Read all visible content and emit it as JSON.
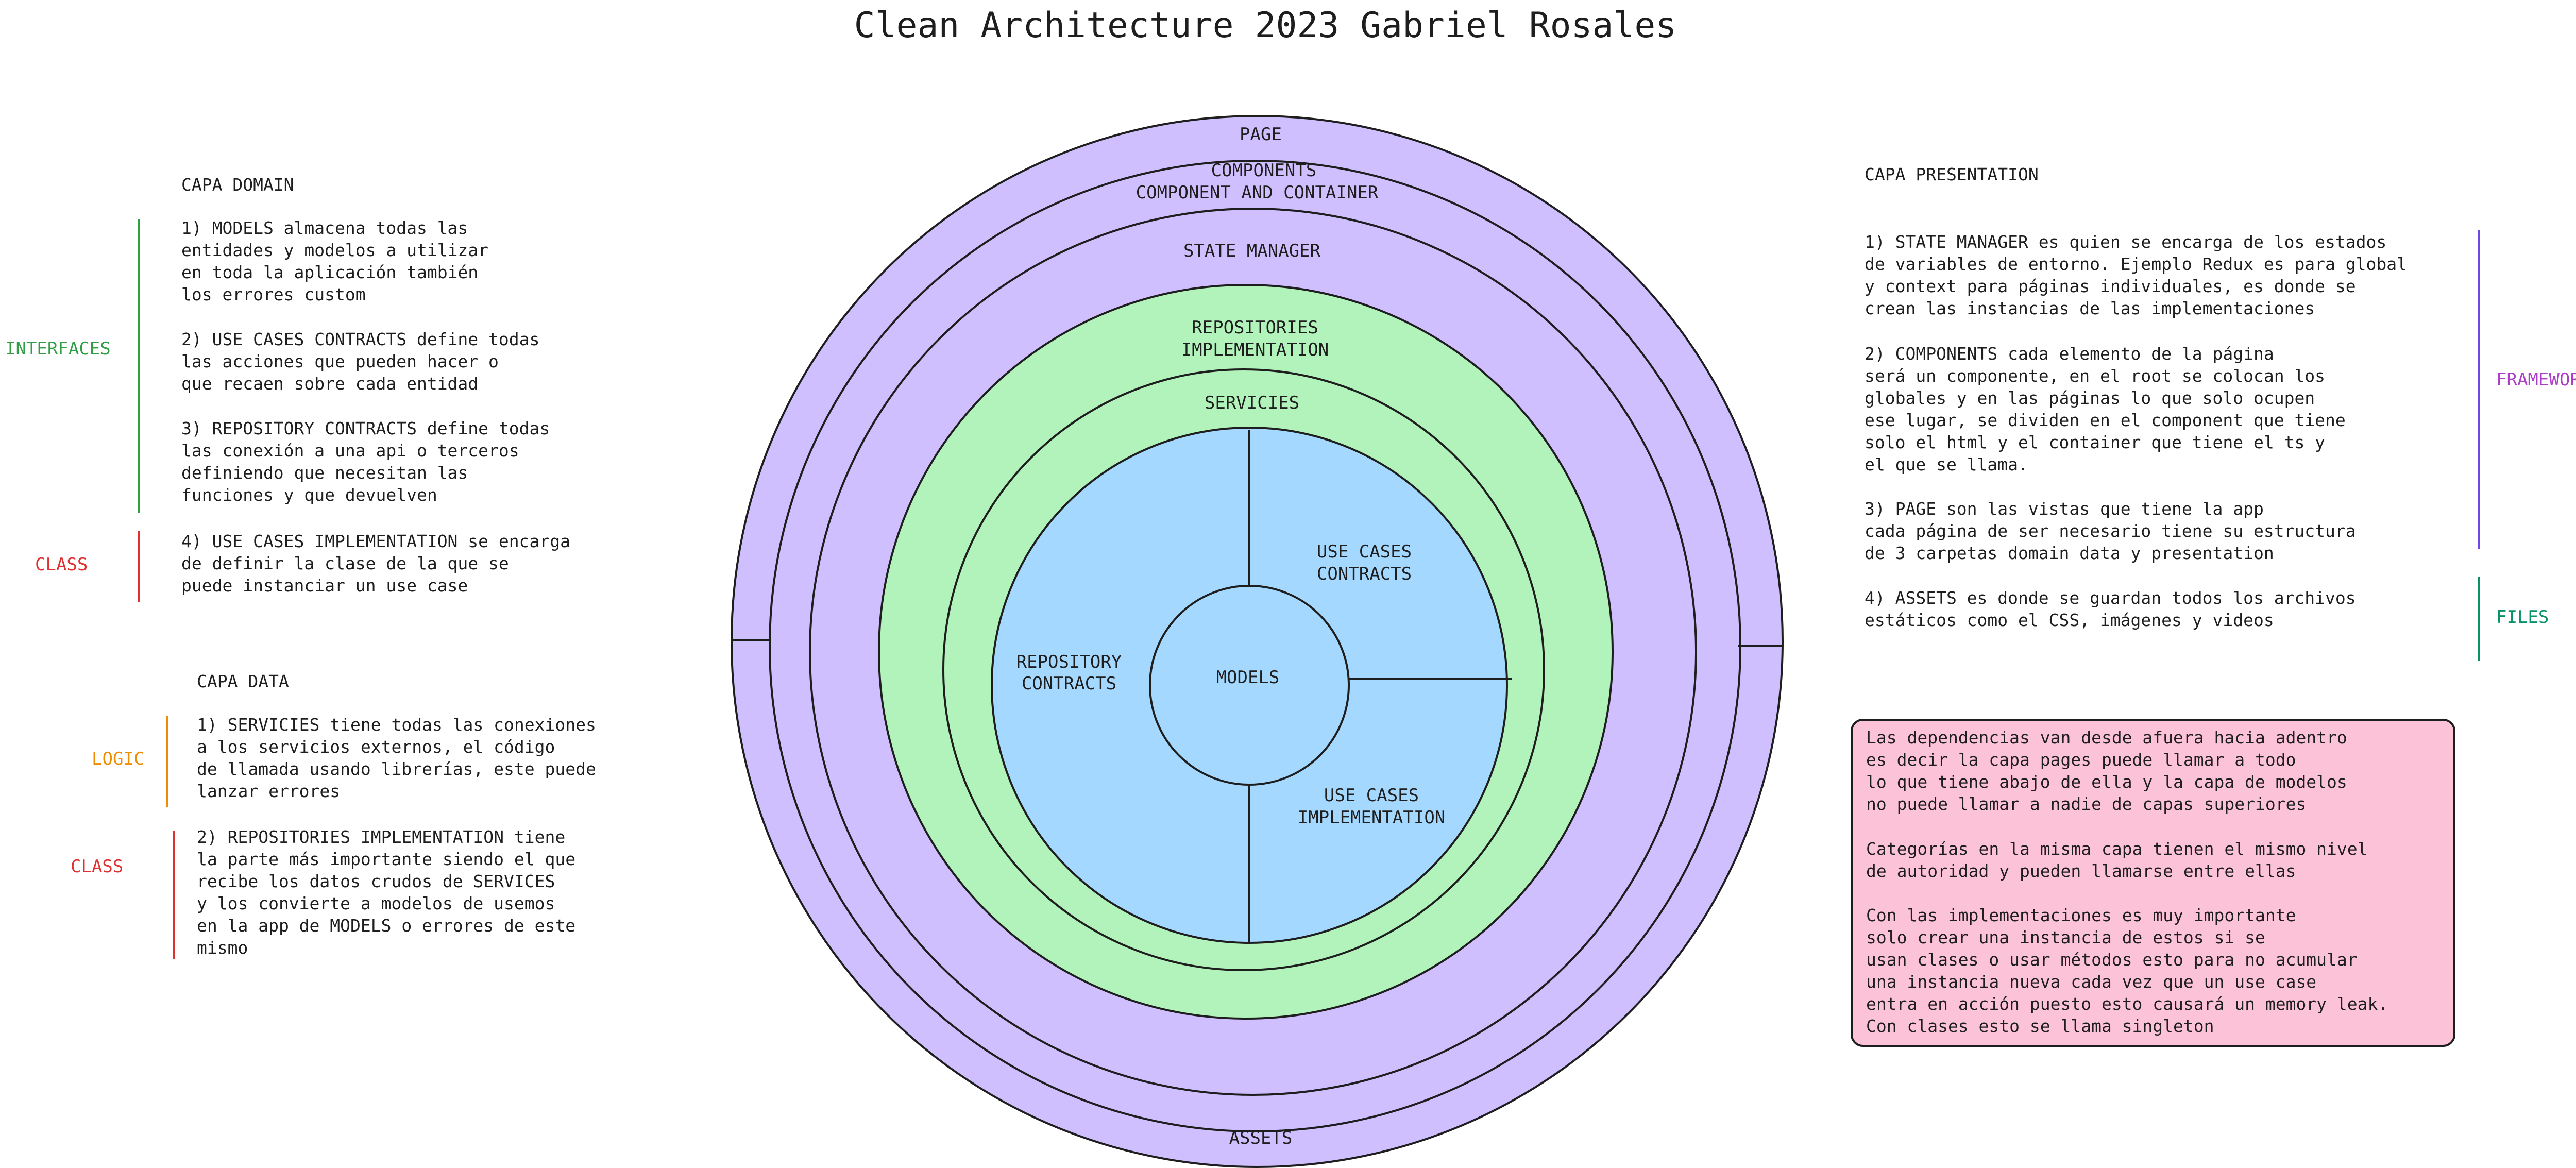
{
  "title": "Clean Architecture 2023 Gabriel Rosales",
  "colors": {
    "outer_rings": "#d0bfff",
    "middle_rings": "#b2f2bb",
    "core": "#a5d8ff",
    "note_box": "#fcc2d7",
    "stroke": "#1e1e1e",
    "interfaces": "#2f9e44",
    "class": "#e03131",
    "logic": "#f08c00",
    "framework": "#ae3ec9",
    "framework_bar": "#7048e8",
    "files": "#099268"
  },
  "rings": {
    "page": "PAGE",
    "components": [
      "COMPONENTS",
      "COMPONENT AND CONTAINER"
    ],
    "state_manager": "STATE MANAGER",
    "repositories_impl": [
      "REPOSITORIES",
      "IMPLEMENTATION"
    ],
    "servicies": "SERVICIES",
    "use_cases_contracts": [
      "USE CASES",
      "CONTRACTS"
    ],
    "repository_contracts": [
      "REPOSITORY",
      "CONTRACTS"
    ],
    "models": "MODELS",
    "use_cases_impl": [
      "USE CASES",
      "IMPLEMENTATION"
    ],
    "assets": "ASSETS"
  },
  "capa_domain": {
    "heading": "CAPA DOMAIN",
    "items": [
      [
        "1) MODELS almacena todas las",
        "entidades y modelos a utilizar",
        "en toda la aplicación también",
        "los errores custom"
      ],
      [
        "2) USE CASES CONTRACTS define todas",
        "las acciones que pueden hacer o",
        "que recaen sobre cada entidad"
      ],
      [
        "3) REPOSITORY CONTRACTS define todas",
        "las conexión a una api o terceros",
        "definiendo que necesitan las",
        "funciones y que devuelven"
      ],
      [
        "4) USE CASES IMPLEMENTATION se encarga",
        "de definir la clase de la que se",
        "puede instanciar un use case"
      ]
    ],
    "tags": [
      "INTERFACES",
      "CLASS"
    ]
  },
  "capa_data": {
    "heading": "CAPA DATA",
    "items": [
      [
        "1) SERVICIES tiene todas las conexiones",
        "a los servicios externos, el código",
        "de llamada usando librerías, este puede",
        "lanzar errores"
      ],
      [
        "2) REPOSITORIES IMPLEMENTATION tiene",
        "la parte más importante siendo el que",
        "recibe los datos crudos de SERVICES",
        "y los convierte a modelos de usemos",
        "en la app de MODELS o errores de este",
        "mismo"
      ]
    ],
    "tags": [
      "LOGIC",
      "CLASS"
    ]
  },
  "capa_presentation": {
    "heading": "CAPA PRESENTATION",
    "items": [
      [
        "1) STATE MANAGER es quien se encarga de los estados",
        "de variables de entorno. Ejemplo Redux es para global",
        "y context para páginas individuales, es donde se",
        "crean las instancias de las implementaciones"
      ],
      [
        "2) COMPONENTS cada elemento de la página",
        "será un componente, en el root se colocan los",
        "globales y en las páginas lo que solo ocupen",
        "ese lugar, se dividen en el component que tiene",
        "solo el html y el container que tiene el ts y",
        "el que se llama."
      ],
      [
        "3) PAGE son las vistas que tiene la app",
        "cada página de ser necesario tiene su estructura",
        "de 3 carpetas domain data y presentation"
      ],
      [
        "4) ASSETS es donde se guardan todos los archivos",
        "estáticos como el CSS, imágenes y videos"
      ]
    ],
    "tags": [
      "FRAMEWORK",
      "FILES"
    ]
  },
  "note": {
    "paragraphs": [
      [
        "Las dependencias van desde afuera hacia adentro",
        "es decir la capa pages puede llamar a todo",
        "lo que tiene abajo de ella y la capa de modelos",
        "no puede llamar a nadie de capas superiores"
      ],
      [
        "Categorías en la misma capa tienen el mismo nivel",
        "de autoridad y pueden llamarse entre ellas"
      ],
      [
        "Con las implementaciones es muy importante",
        "solo crear una instancia de estos si se",
        "usan clases o usar métodos esto para no acumular",
        "una instancia nueva cada vez que un use case",
        "entra en acción puesto esto causará un memory leak.",
        "Con clases esto se llama singleton"
      ]
    ]
  }
}
